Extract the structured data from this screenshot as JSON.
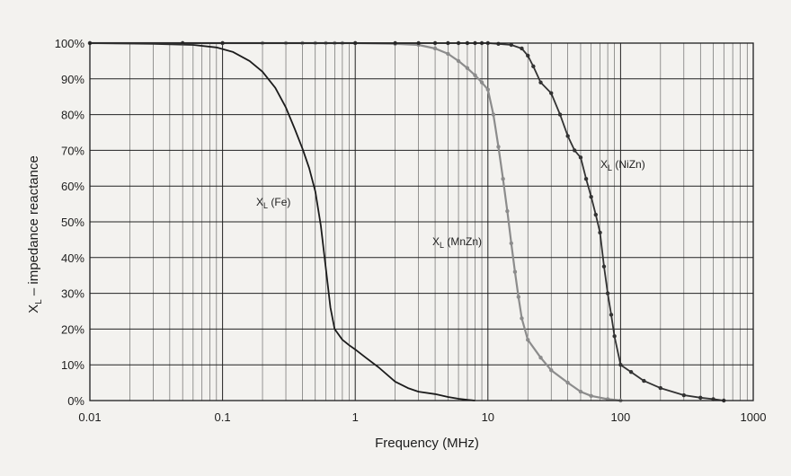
{
  "chart_data": {
    "type": "line",
    "title": "",
    "xlabel": "Frequency (MHz)",
    "ylabel": "XL – impedance reactance",
    "ylabel_main": "X",
    "ylabel_sub": "L",
    "ylabel_rest": " – impedance reactance",
    "xscale": "log",
    "xlim": [
      0.01,
      1000
    ],
    "ylim": [
      0,
      100
    ],
    "grid": true,
    "x_ticks": [
      0.01,
      0.1,
      1,
      10,
      100,
      1000
    ],
    "x_tick_labels": [
      "0.01",
      "0.1",
      "1",
      "10",
      "100",
      "1000"
    ],
    "y_ticks": [
      0,
      10,
      20,
      30,
      40,
      50,
      60,
      70,
      80,
      90,
      100
    ],
    "y_tick_labels": [
      "0%",
      "10%",
      "20%",
      "30%",
      "40%",
      "50%",
      "60%",
      "70%",
      "80%",
      "90%",
      "100%"
    ],
    "series": [
      {
        "name": "XL (Fe)",
        "label_main": "X",
        "label_sub": "L",
        "label_rest": " (Fe)",
        "color": "#1c1c1c",
        "markers": false,
        "x": [
          0.01,
          0.03,
          0.06,
          0.09,
          0.12,
          0.16,
          0.2,
          0.25,
          0.3,
          0.35,
          0.4,
          0.45,
          0.5,
          0.55,
          0.6,
          0.65,
          0.7,
          0.8,
          0.9,
          1,
          1.2,
          1.5,
          2,
          2.5,
          3,
          4,
          5,
          6,
          7,
          8
        ],
        "y": [
          100,
          99.8,
          99.5,
          98.8,
          97.5,
          95,
          92,
          87.5,
          82,
          76,
          70.5,
          65,
          58.5,
          49,
          37,
          26,
          20,
          17,
          15.5,
          14.3,
          12,
          9.3,
          5.3,
          3.5,
          2.5,
          1.8,
          1,
          0.5,
          0.2,
          0
        ]
      },
      {
        "name": "XL (MnZn)",
        "label_main": "X",
        "label_sub": "L",
        "label_rest": " (MnZn)",
        "color": "#8c8c8c",
        "markers": true,
        "x": [
          0.01,
          0.05,
          0.1,
          0.2,
          0.3,
          0.4,
          0.5,
          0.6,
          0.7,
          0.8,
          1,
          2,
          3,
          4,
          5,
          6,
          7,
          8,
          9,
          10,
          11,
          12,
          13,
          14,
          15,
          16,
          17,
          18,
          20,
          25,
          30,
          40,
          50,
          60,
          80,
          100
        ],
        "y": [
          100,
          100,
          100,
          100,
          100,
          100,
          100,
          100,
          100,
          100,
          100,
          99.8,
          99.5,
          98.5,
          97,
          95,
          93,
          91,
          89,
          87,
          80,
          71,
          62,
          53,
          44,
          36,
          29,
          23,
          17,
          12,
          8.5,
          5,
          2.5,
          1.3,
          0.4,
          0
        ]
      },
      {
        "name": "XL (NiZn)",
        "label_main": "X",
        "label_sub": "L",
        "label_rest": " (NiZn)",
        "color": "#333333",
        "markers": true,
        "x": [
          0.01,
          0.05,
          0.1,
          1,
          2,
          3,
          4,
          5,
          6,
          7,
          8,
          9,
          10,
          12,
          15,
          18,
          20,
          22,
          25,
          30,
          35,
          40,
          45,
          50,
          55,
          60,
          65,
          70,
          75,
          80,
          85,
          90,
          100,
          120,
          150,
          200,
          300,
          400,
          500,
          600
        ],
        "y": [
          100,
          100,
          100,
          100,
          100,
          100,
          100,
          100,
          100,
          100,
          100,
          100,
          100,
          99.8,
          99.5,
          98.5,
          96.5,
          93.5,
          89,
          86,
          80,
          74,
          70,
          68,
          62,
          57,
          52,
          47,
          37.5,
          30,
          24,
          18,
          10,
          8,
          5.5,
          3.5,
          1.5,
          0.8,
          0.4,
          0
        ]
      }
    ]
  }
}
